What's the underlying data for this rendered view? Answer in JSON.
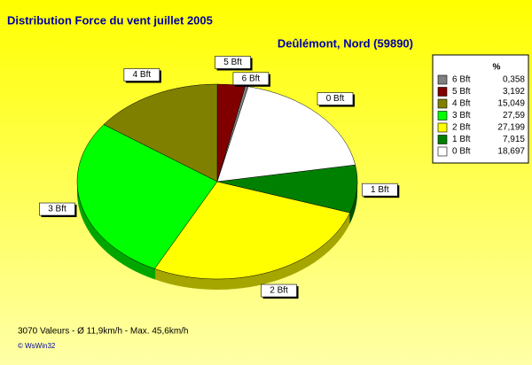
{
  "chart_data": {
    "type": "pie",
    "title": "Distribution Force du vent  juillet 2005",
    "subtitle": "Deûlémont, Nord (59890)",
    "legend_header": "%",
    "categories": [
      "6 Bft",
      "5 Bft",
      "4 Bft",
      "3 Bft",
      "2 Bft",
      "1 Bft",
      "0 Bft"
    ],
    "values": [
      0.358,
      3.192,
      15.049,
      27.59,
      27.199,
      7.915,
      18.697
    ],
    "value_labels": [
      "0,358",
      "3,192",
      "15,049",
      "27,59",
      "27,199",
      "7,915",
      "18,697"
    ],
    "colors": [
      "#808080",
      "#800000",
      "#808000",
      "#00ff00",
      "#ffff00",
      "#008000",
      "#ffffff"
    ],
    "legend_position": "right",
    "footer": "3070 Valeurs   -   Ø 11,9km/h  -  Max. 45,6km/h",
    "credit": "© WsWin32"
  }
}
